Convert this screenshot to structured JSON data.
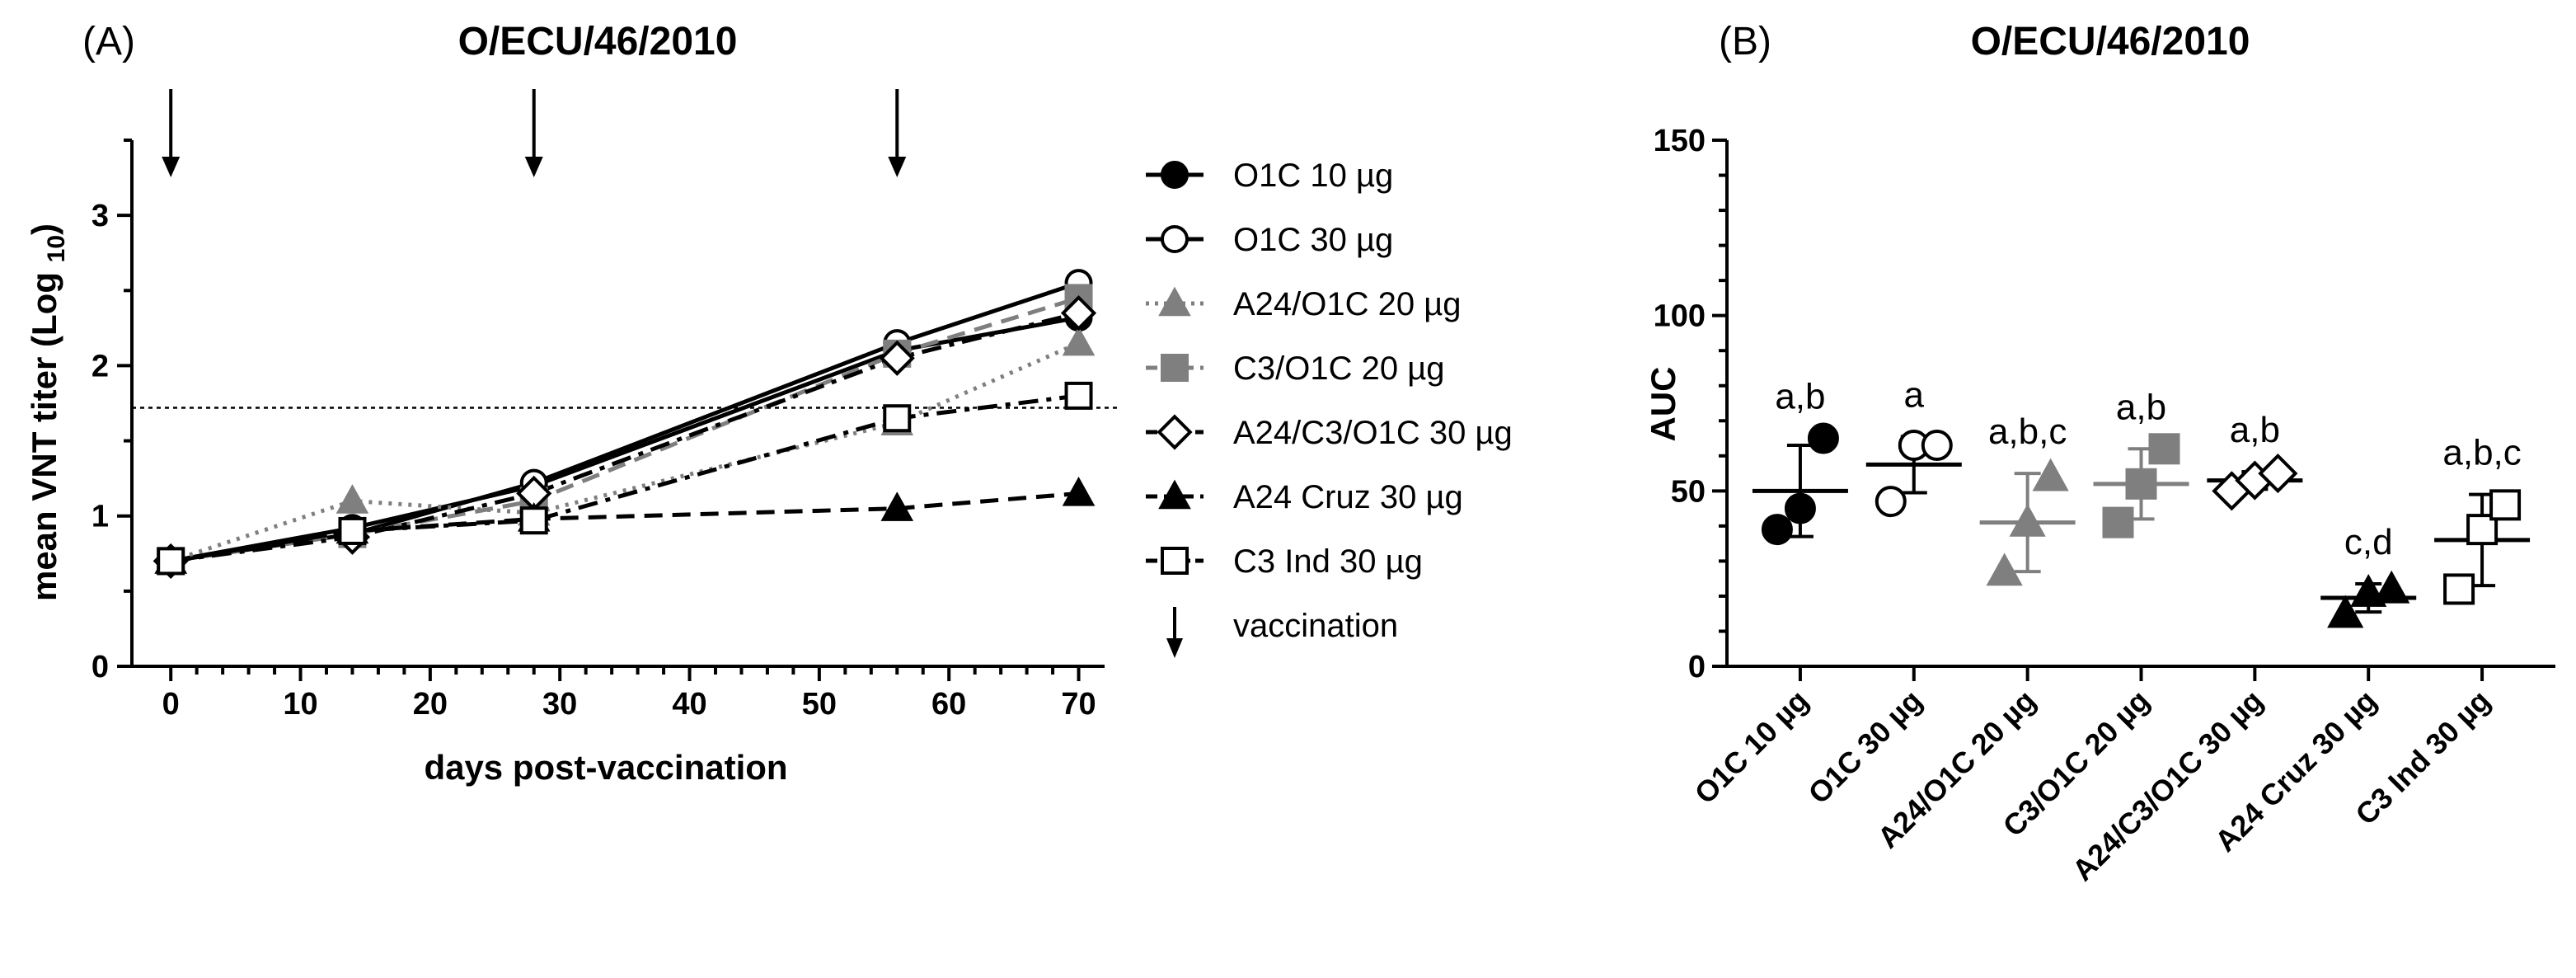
{
  "chart_data": [
    {
      "panel": "(A)",
      "type": "line",
      "title": "O/ECU/46/2010",
      "xlabel": "days post-vaccination",
      "ylabel": "mean VNT titer (Log 10)",
      "xlim": [
        -3,
        72
      ],
      "ylim": [
        0,
        3.5
      ],
      "xticks": [
        0,
        10,
        20,
        30,
        40,
        50,
        60,
        70
      ],
      "yticks": [
        0,
        1,
        2,
        3
      ],
      "threshold": 1.72,
      "vaccination_days": [
        0,
        28,
        56
      ],
      "x": [
        0,
        14,
        28,
        56,
        70
      ],
      "series": [
        {
          "name": "O1C 10 µg",
          "values": [
            0.7,
            0.92,
            1.2,
            2.1,
            2.32
          ],
          "color": "#000000",
          "marker": "circle",
          "fill": "#000000",
          "dash": "solid"
        },
        {
          "name": "O1C 30 µg",
          "values": [
            0.7,
            0.88,
            1.22,
            2.15,
            2.55
          ],
          "color": "#000000",
          "marker": "circle",
          "fill": "#ffffff",
          "dash": "solid"
        },
        {
          "name": "A24/O1C 20 µg",
          "values": [
            0.7,
            1.1,
            1.02,
            1.62,
            2.15
          ],
          "color": "#7f7f7f",
          "marker": "triangle",
          "fill": "#7f7f7f",
          "dash": "dotted"
        },
        {
          "name": "C3/O1C 20 µg",
          "values": [
            0.7,
            0.88,
            1.1,
            2.08,
            2.45
          ],
          "color": "#7f7f7f",
          "marker": "square",
          "fill": "#7f7f7f",
          "dash": "dashed"
        },
        {
          "name": "A24/C3/O1C 30 µg",
          "values": [
            0.7,
            0.86,
            1.15,
            2.05,
            2.35
          ],
          "color": "#000000",
          "marker": "diamond",
          "fill": "#ffffff",
          "dash": "dashdot"
        },
        {
          "name": "A24 Cruz 30 µg",
          "values": [
            0.7,
            0.9,
            0.98,
            1.05,
            1.15
          ],
          "color": "#000000",
          "marker": "triangle",
          "fill": "#000000",
          "dash": "dashed"
        },
        {
          "name": "C3 Ind 30 µg",
          "values": [
            0.7,
            0.9,
            0.97,
            1.65,
            1.8
          ],
          "color": "#000000",
          "marker": "square",
          "fill": "#ffffff",
          "dash": "dashdot"
        }
      ],
      "legend_extra": "vaccination",
      "legend_position": "right"
    },
    {
      "panel": "(B)",
      "type": "scatter",
      "title": "O/ECU/46/2010",
      "ylabel": "AUC",
      "ylim": [
        0,
        150
      ],
      "yticks": [
        0,
        50,
        100,
        150
      ],
      "categories": [
        "O1C 10 µg",
        "O1C 30 µg",
        "A24/O1C 20 µg",
        "C3/O1C 20 µg",
        "A24/C3/O1C 30 µg",
        "A24 Cruz 30 µg",
        "C3 Ind 30 µg"
      ],
      "groups": [
        {
          "points": [
            39,
            45,
            65
          ],
          "mean": 50,
          "sd": 13,
          "marker": "circle",
          "fill": "#000000",
          "color": "#000000",
          "letters": "a,b"
        },
        {
          "points": [
            47,
            63,
            63
          ],
          "mean": 57.5,
          "sd": 8,
          "marker": "circle",
          "fill": "#ffffff",
          "color": "#000000",
          "letters": "a"
        },
        {
          "points": [
            27,
            41,
            54
          ],
          "mean": 41,
          "sd": 14,
          "marker": "triangle",
          "fill": "#7f7f7f",
          "color": "#7f7f7f",
          "letters": "a,b,c"
        },
        {
          "points": [
            41,
            52,
            62
          ],
          "mean": 52,
          "sd": 10,
          "marker": "square",
          "fill": "#7f7f7f",
          "color": "#7f7f7f",
          "letters": "a,b"
        },
        {
          "points": [
            50,
            53,
            55
          ],
          "mean": 53,
          "sd": 2.5,
          "marker": "diamond",
          "fill": "#ffffff",
          "color": "#000000",
          "letters": "a,b"
        },
        {
          "points": [
            15,
            21,
            22
          ],
          "mean": 19.5,
          "sd": 4,
          "marker": "triangle",
          "fill": "#000000",
          "color": "#000000",
          "letters": "c,d"
        },
        {
          "points": [
            22,
            39,
            46
          ],
          "mean": 36,
          "sd": 13,
          "marker": "square",
          "fill": "#ffffff",
          "color": "#000000",
          "letters": "a,b,c"
        }
      ]
    }
  ]
}
